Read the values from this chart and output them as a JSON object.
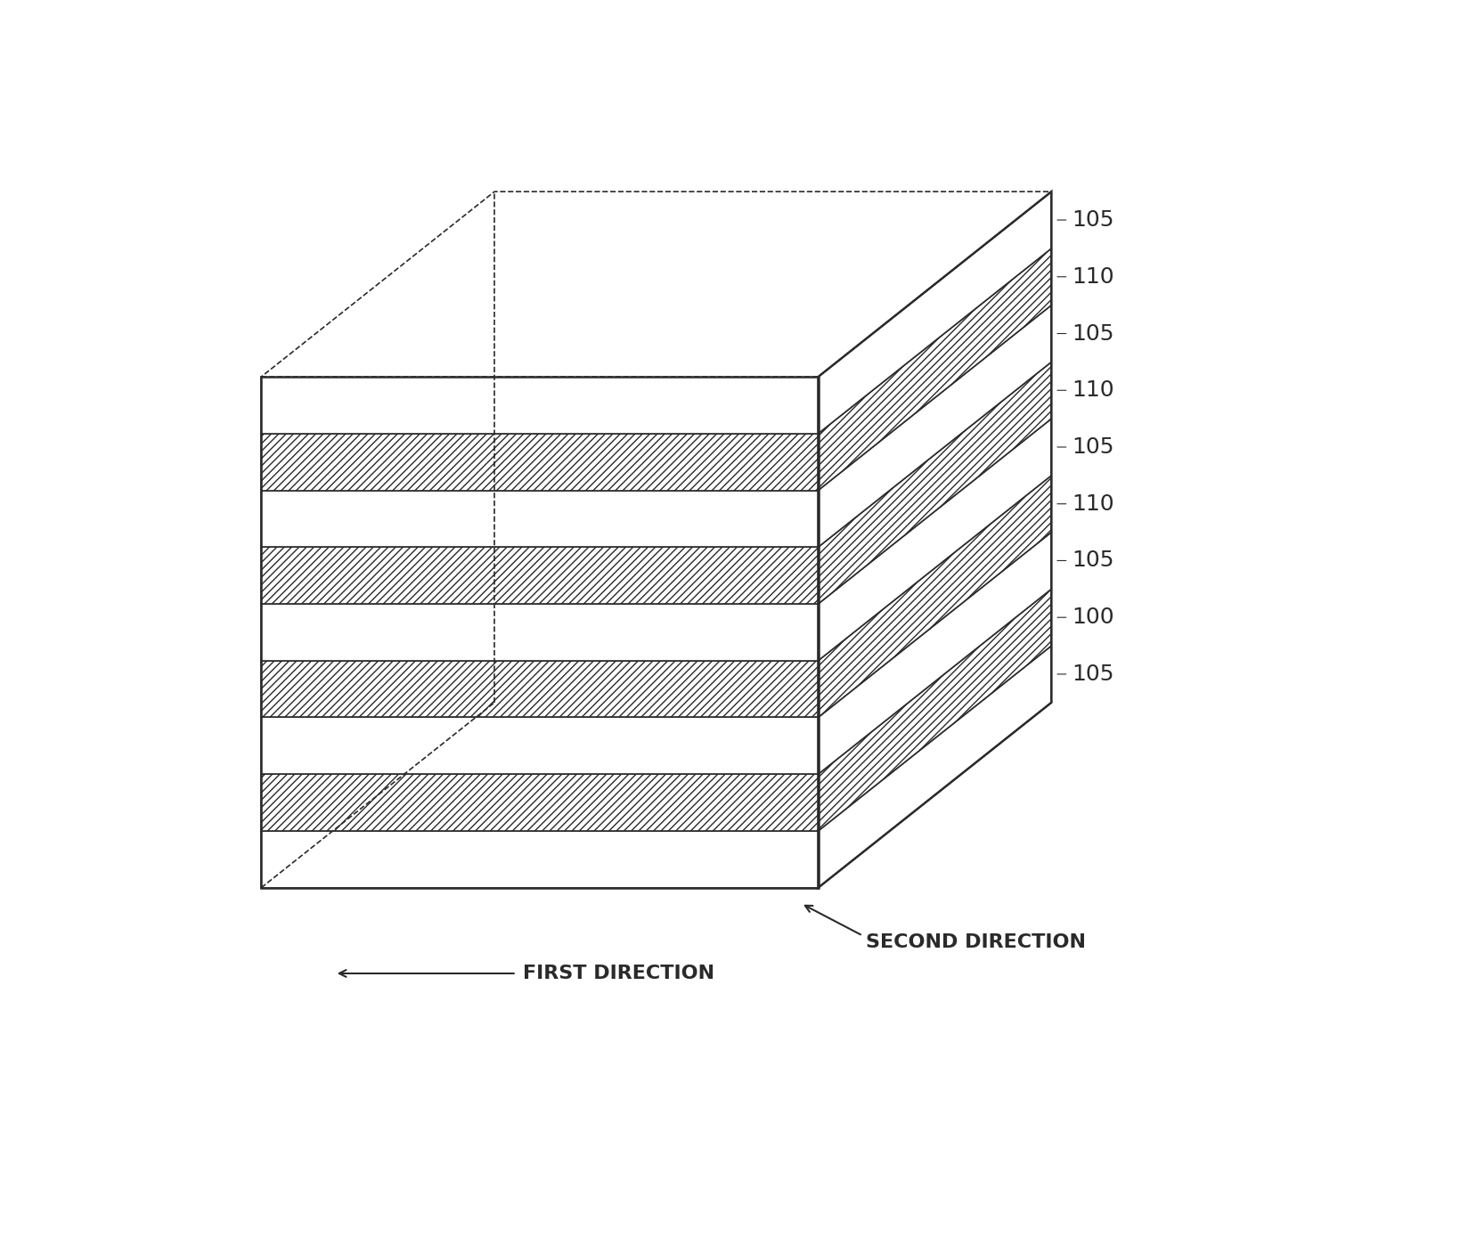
{
  "background_color": "#ffffff",
  "line_color": "#2a2a2a",
  "layers": [
    {
      "label": "105",
      "type": "plain"
    },
    {
      "label": "100",
      "type": "hatch"
    },
    {
      "label": "105",
      "type": "plain"
    },
    {
      "label": "110",
      "type": "hatch"
    },
    {
      "label": "105",
      "type": "plain"
    },
    {
      "label": "110",
      "type": "hatch"
    },
    {
      "label": "105",
      "type": "plain"
    },
    {
      "label": "110",
      "type": "hatch"
    },
    {
      "label": "105",
      "type": "plain"
    }
  ],
  "first_direction_text": "FIRST DIRECTION",
  "second_direction_text": "SECOND DIRECTION",
  "font_size_label": 18,
  "font_size_direction": 16
}
